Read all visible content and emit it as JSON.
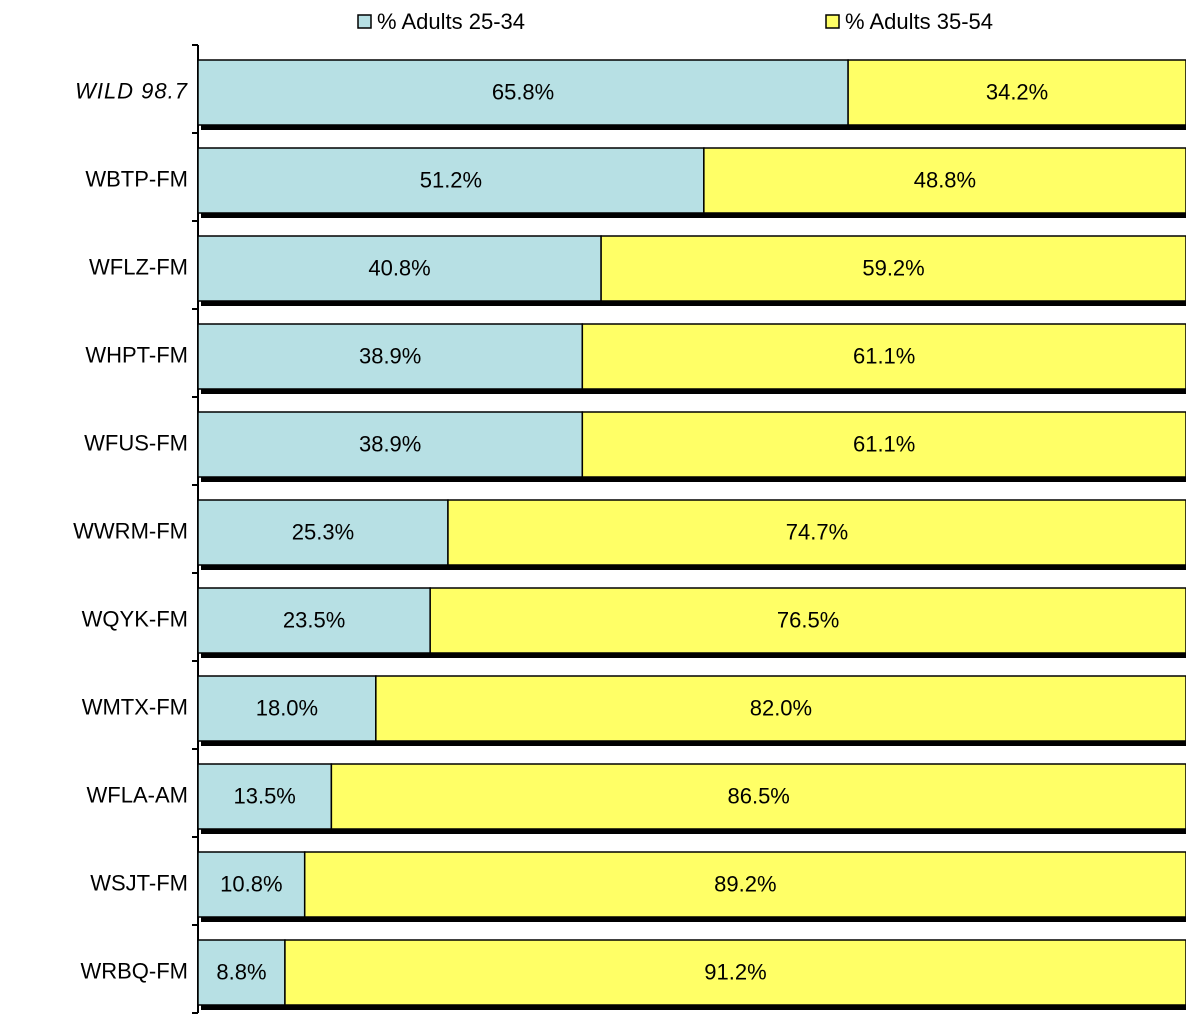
{
  "chart_data": {
    "type": "stacked_bar_horizontal",
    "categories": [
      "WILD 98.7",
      "WBTP-FM",
      "WFLZ-FM",
      "WHPT-FM",
      "WFUS-FM",
      "WWRM-FM",
      "WQYK-FM",
      "WMTX-FM",
      "WFLA-AM",
      "WSJT-FM",
      "WRBQ-FM"
    ],
    "label_colors": [
      "#cc0000",
      "#000000",
      "#000000",
      "#000000",
      "#000000",
      "#000000",
      "#000000",
      "#000000",
      "#000000",
      "#000000",
      "#000000"
    ],
    "label_italic": [
      true,
      false,
      false,
      false,
      false,
      false,
      false,
      false,
      false,
      false,
      false
    ],
    "series": [
      {
        "name": "% Adults 25-34",
        "color": "#b7e0e4",
        "values": [
          65.8,
          51.2,
          40.8,
          38.9,
          38.9,
          25.3,
          23.5,
          18.0,
          13.5,
          10.8,
          8.8
        ],
        "value_labels": [
          "65.8%",
          "51.2%",
          "40.8%",
          "38.9%",
          "38.9%",
          "25.3%",
          "23.5%",
          "18.0%",
          "13.5%",
          "10.8%",
          "8.8%"
        ]
      },
      {
        "name": "% Adults 35-54",
        "color": "#ffff66",
        "values": [
          34.2,
          48.8,
          59.2,
          61.1,
          61.1,
          74.7,
          76.5,
          82.0,
          86.5,
          89.2,
          91.2
        ],
        "value_labels": [
          "34.2%",
          "48.8%",
          "59.2%",
          "61.1%",
          "61.1%",
          "74.7%",
          "76.5%",
          "82.0%",
          "86.5%",
          "89.2%",
          "91.2%"
        ]
      }
    ],
    "xlim": [
      0,
      100
    ],
    "legend": "top"
  }
}
